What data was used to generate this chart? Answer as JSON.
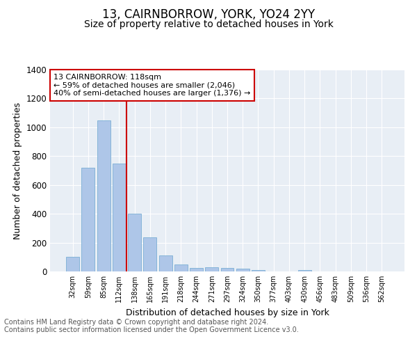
{
  "title": "13, CAIRNBORROW, YORK, YO24 2YY",
  "subtitle": "Size of property relative to detached houses in York",
  "xlabel": "Distribution of detached houses by size in York",
  "ylabel": "Number of detached properties",
  "categories": [
    "32sqm",
    "59sqm",
    "85sqm",
    "112sqm",
    "138sqm",
    "165sqm",
    "191sqm",
    "218sqm",
    "244sqm",
    "271sqm",
    "297sqm",
    "324sqm",
    "350sqm",
    "377sqm",
    "403sqm",
    "430sqm",
    "456sqm",
    "483sqm",
    "509sqm",
    "536sqm",
    "562sqm"
  ],
  "values": [
    100,
    720,
    1050,
    750,
    400,
    235,
    110,
    48,
    22,
    30,
    22,
    18,
    10,
    0,
    0,
    10,
    0,
    0,
    0,
    0,
    0
  ],
  "bar_color": "#aec6e8",
  "bar_edge_color": "#7aafd4",
  "vline_color": "#cc0000",
  "vline_x_index": 3,
  "annotation_box_text": "13 CAIRNBORROW: 118sqm\n← 59% of detached houses are smaller (2,046)\n40% of semi-detached houses are larger (1,376) →",
  "ylim": [
    0,
    1400
  ],
  "yticks": [
    0,
    200,
    400,
    600,
    800,
    1000,
    1200,
    1400
  ],
  "footer_text": "Contains HM Land Registry data © Crown copyright and database right 2024.\nContains public sector information licensed under the Open Government Licence v3.0.",
  "fig_background": "#ffffff",
  "plot_background": "#e8eef5",
  "title_fontsize": 12,
  "subtitle_fontsize": 10,
  "annotation_fontsize": 8,
  "footer_fontsize": 7,
  "ylabel_fontsize": 9,
  "xlabel_fontsize": 9
}
